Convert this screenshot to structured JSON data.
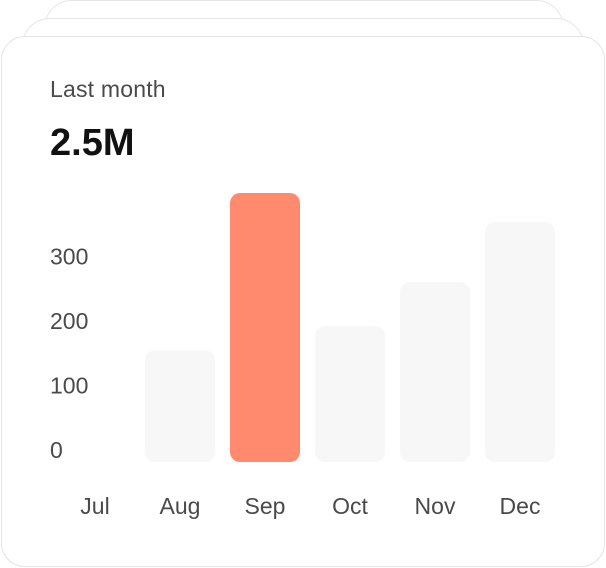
{
  "card": {
    "label": "Last month",
    "value": "2.5M"
  },
  "colors": {
    "bar_default": "#f7f7f7",
    "bar_highlight": "#ff8a6e",
    "text": "#4a4a4a"
  },
  "chart_data": {
    "type": "bar",
    "title": "",
    "xlabel": "",
    "ylabel": "",
    "categories": [
      "Jul",
      "Aug",
      "Sep",
      "Oct",
      "Nov",
      "Dec"
    ],
    "values": [
      0,
      173,
      417,
      211,
      279,
      372
    ],
    "highlight_category": "Sep",
    "yticks": [
      0,
      100,
      200,
      300
    ],
    "ytick_labels": [
      "0",
      "100",
      "200",
      "300"
    ],
    "ylim": [
      0,
      417
    ],
    "grid": false,
    "legend": "none"
  }
}
